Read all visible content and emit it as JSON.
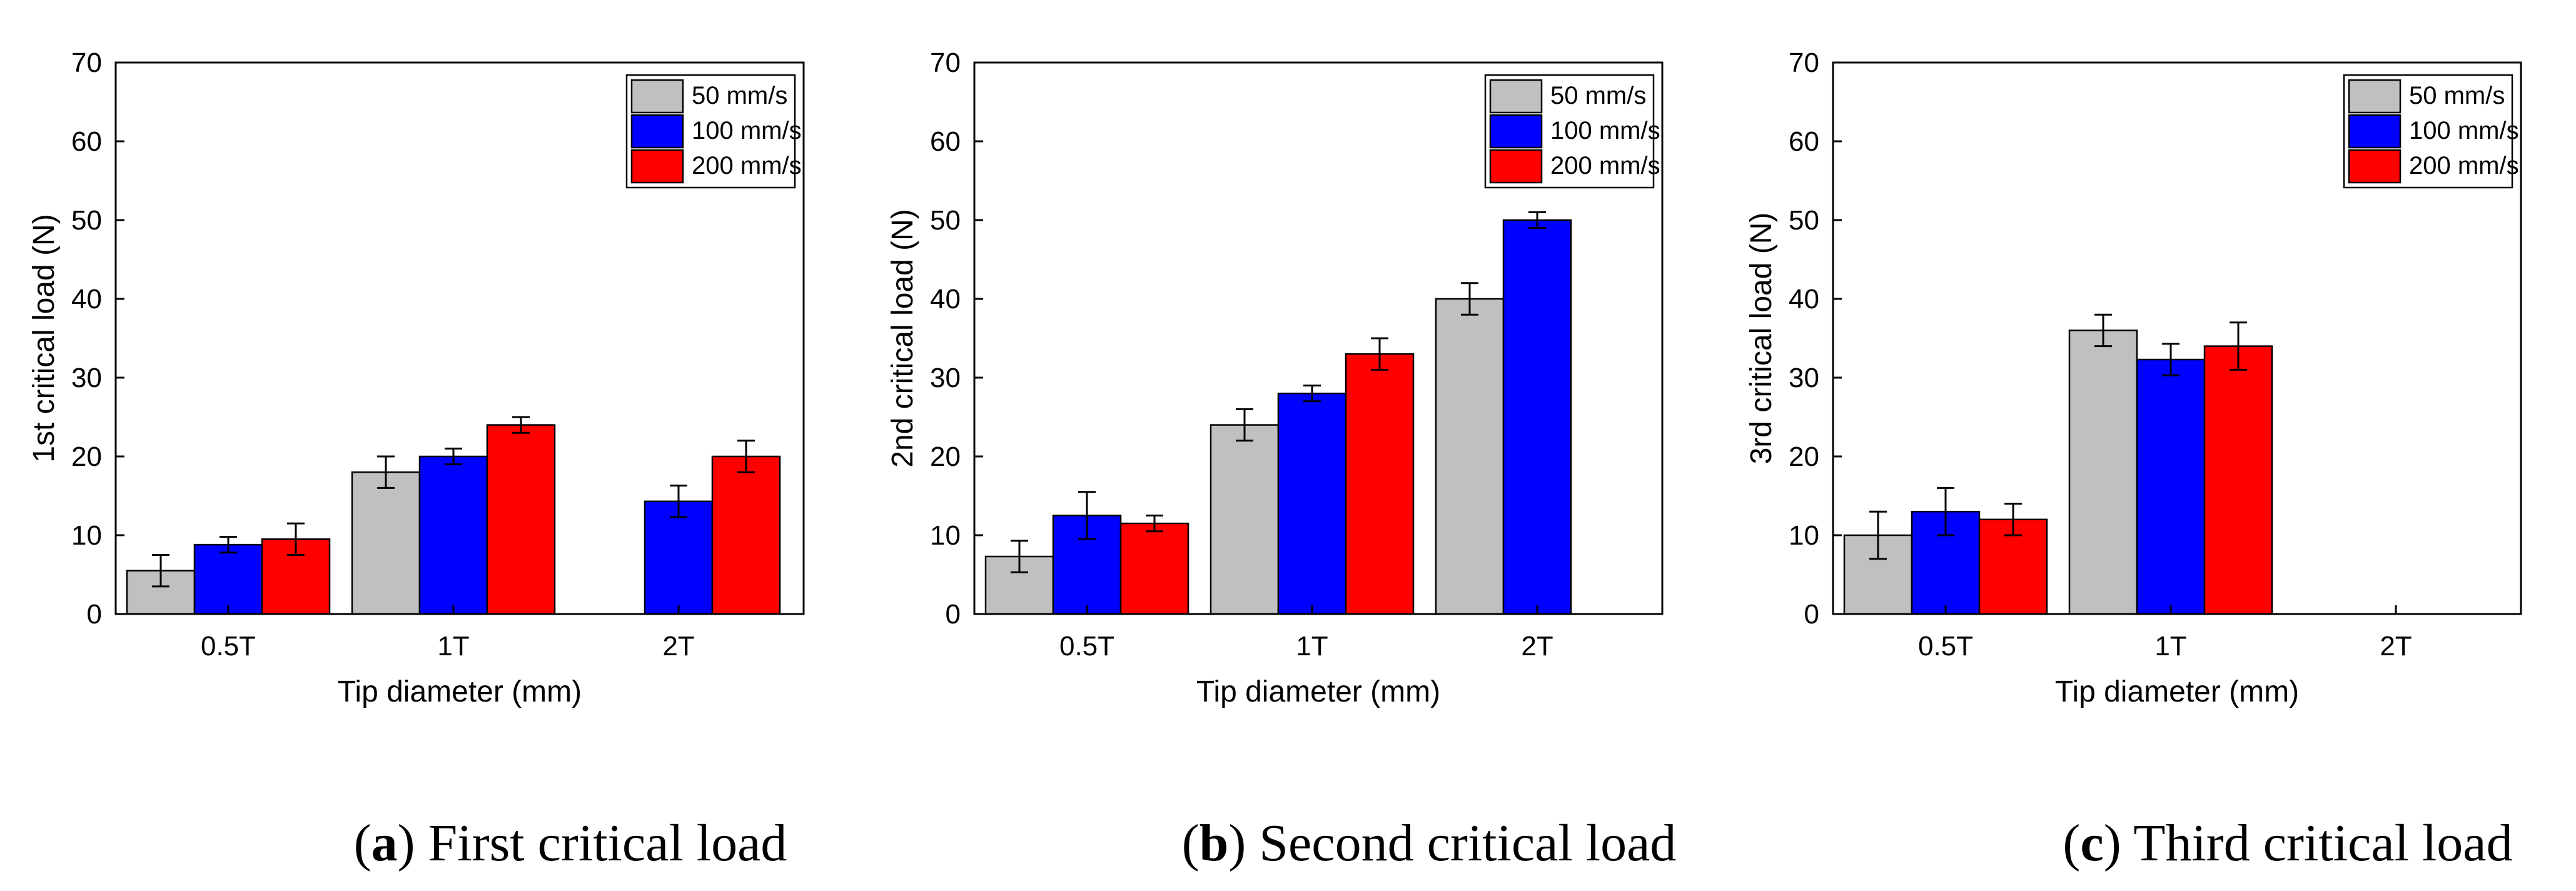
{
  "colors": {
    "series_50": "#c0c0c0",
    "series_100": "#0000ff",
    "series_200": "#ff0000"
  },
  "captions": [
    {
      "letter": "a",
      "text": "First critical load"
    },
    {
      "letter": "b",
      "text": "Second critical load"
    },
    {
      "letter": "c",
      "text": "Third critical load"
    }
  ],
  "chart_data": [
    {
      "type": "bar",
      "title": "",
      "xlabel": "Tip diameter (mm)",
      "ylabel": "1st critical load (N)",
      "ylim": [
        0,
        70
      ],
      "yticks": [
        0,
        10,
        20,
        30,
        40,
        50,
        60,
        70
      ],
      "categories": [
        "0.5T",
        "1T",
        "2T"
      ],
      "legend_position": "top-right",
      "series": [
        {
          "name": "50 mm/s",
          "values": [
            5.5,
            18,
            null
          ],
          "errors": [
            2,
            2,
            null
          ]
        },
        {
          "name": "100 mm/s",
          "values": [
            8.8,
            20,
            14.3
          ],
          "errors": [
            1,
            1,
            2
          ]
        },
        {
          "name": "200 mm/s",
          "values": [
            9.5,
            24,
            20
          ],
          "errors": [
            2,
            1,
            2
          ]
        }
      ]
    },
    {
      "type": "bar",
      "title": "",
      "xlabel": "Tip diameter (mm)",
      "ylabel": "2nd critical load (N)",
      "ylim": [
        0,
        70
      ],
      "yticks": [
        0,
        10,
        20,
        30,
        40,
        50,
        60,
        70
      ],
      "categories": [
        "0.5T",
        "1T",
        "2T"
      ],
      "legend_position": "top-right",
      "series": [
        {
          "name": "50 mm/s",
          "values": [
            7.3,
            24,
            40
          ],
          "errors": [
            2,
            2,
            2
          ]
        },
        {
          "name": "100 mm/s",
          "values": [
            12.5,
            28,
            50
          ],
          "errors": [
            3,
            1,
            1
          ]
        },
        {
          "name": "200 mm/s",
          "values": [
            11.5,
            33,
            null
          ],
          "errors": [
            1,
            2,
            null
          ]
        }
      ]
    },
    {
      "type": "bar",
      "title": "",
      "xlabel": "Tip diameter (mm)",
      "ylabel": "3rd critical load (N)",
      "ylim": [
        0,
        70
      ],
      "yticks": [
        0,
        10,
        20,
        30,
        40,
        50,
        60,
        70
      ],
      "categories": [
        "0.5T",
        "1T",
        "2T"
      ],
      "legend_position": "top-right",
      "series": [
        {
          "name": "50 mm/s",
          "values": [
            10,
            36,
            null
          ],
          "errors": [
            3,
            2,
            null
          ]
        },
        {
          "name": "100 mm/s",
          "values": [
            13,
            32.3,
            null
          ],
          "errors": [
            3,
            2,
            null
          ]
        },
        {
          "name": "200 mm/s",
          "values": [
            12,
            34,
            null
          ],
          "errors": [
            2,
            3,
            null
          ]
        }
      ]
    }
  ]
}
